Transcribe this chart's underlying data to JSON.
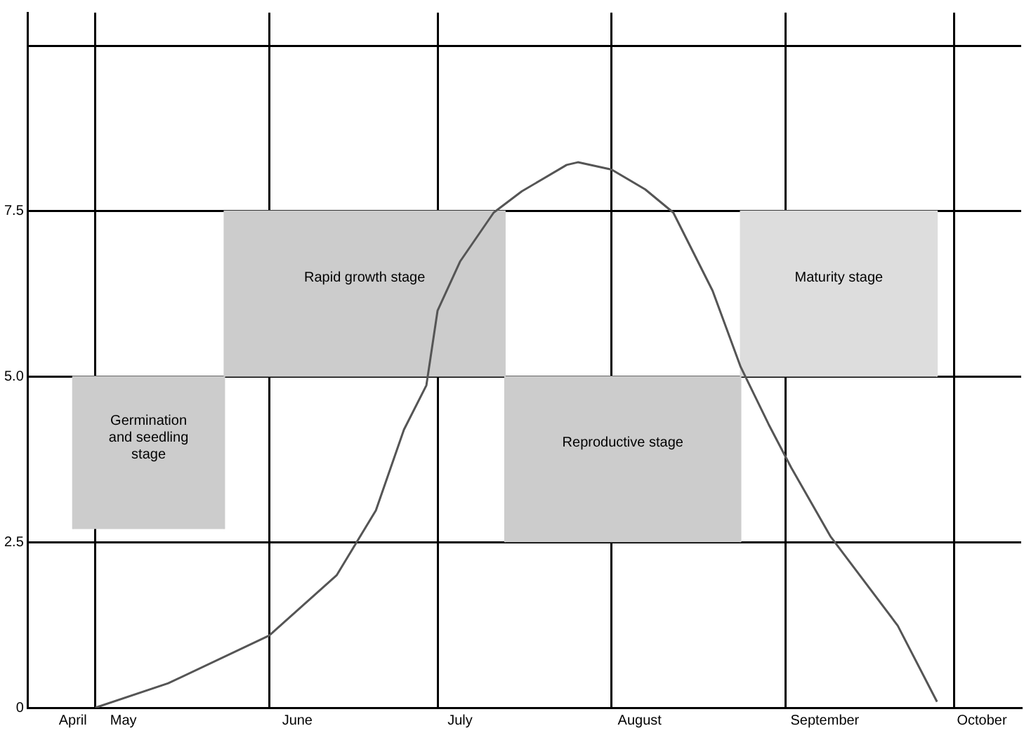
{
  "chart_data": {
    "type": "line",
    "xlim": [
      "--04-19",
      "--10-13"
    ],
    "ylim": [
      0,
      10.5
    ],
    "xticks": [
      {
        "value": "--04-27",
        "label": "April"
      },
      {
        "value": "--05-01",
        "label": null
      },
      {
        "value": "--05-06",
        "label": "May"
      },
      {
        "value": "--06-01",
        "label": null
      },
      {
        "value": "--06-06",
        "label": "June"
      },
      {
        "value": "--07-01",
        "label": null
      },
      {
        "value": "--07-05",
        "label": "July"
      },
      {
        "value": "--08-01",
        "label": null
      },
      {
        "value": "--08-06",
        "label": "August"
      },
      {
        "value": "--09-01",
        "label": null
      },
      {
        "value": "--09-08",
        "label": "September"
      },
      {
        "value": "--10-01",
        "label": null
      },
      {
        "value": "--10-06",
        "label": "October"
      }
    ],
    "yticks": [
      0,
      {
        "value": 2.5,
        "label": "2.5"
      },
      {
        "value": 5,
        "label": "5.0"
      },
      {
        "value": 7.5,
        "label": "7.5"
      },
      {
        "value": 10,
        "label": null
      }
    ],
    "grid": true,
    "legend": false,
    "marker": "none",
    "line_style": "solid",
    "series": [
      {
        "name": "Germination and seedling stage",
        "type": "area",
        "color": "#cccccc",
        "x": [
          "--04-27",
          "--04-27",
          "--05-24",
          "--05-24"
        ],
        "values": [
          2.7,
          5,
          5,
          2.7
        ]
      },
      {
        "name": "Rapid growth stage",
        "type": "area",
        "color": "#cccccc",
        "x": [
          "--05-24",
          "--05-24",
          "--07-13",
          "--07-13"
        ],
        "values": [
          5,
          7.5,
          7.5,
          5
        ]
      },
      {
        "name": "Reproductive stage",
        "type": "area",
        "color": "#cccccc",
        "x": [
          "--07-13",
          "--07-13",
          "--08-24",
          "--08-24"
        ],
        "values": [
          2.5,
          5,
          5,
          2.5
        ]
      },
      {
        "name": "Maturity stage",
        "type": "area",
        "color": "#dddddd",
        "x": [
          "--08-24",
          "--08-24",
          "--09-28",
          "--09-28"
        ],
        "values": [
          5,
          7.5,
          7.5,
          5
        ]
      },
      {
        "color": "#555555",
        "x": [
          "--05-01",
          "--05-14",
          "--06-01",
          "--06-13",
          "--06-20",
          "--06-25",
          "--06-29",
          "--07-01",
          "--07-05",
          "--07-11",
          "--07-16",
          "--07-24",
          "--07-26",
          "--08-01",
          "--08-07",
          "--08-12",
          "--08-19",
          "--08-24",
          "--08-29",
          "--09-02",
          "--09-09",
          "--09-21",
          "--09-28"
        ],
        "values": [
          0,
          0.37,
          1.09,
          2.0,
          2.98,
          4.2,
          4.87,
          6.0,
          6.74,
          7.48,
          7.8,
          8.2,
          8.24,
          8.13,
          7.83,
          7.48,
          6.3,
          5.15,
          4.28,
          3.63,
          2.59,
          1.24,
          0.09
        ]
      }
    ]
  }
}
